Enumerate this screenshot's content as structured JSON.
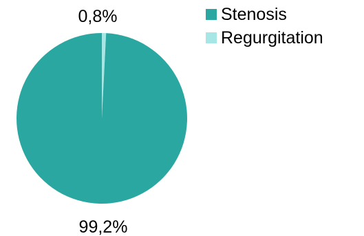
{
  "chart_data": {
    "type": "pie",
    "title": "",
    "categories": [
      "Stenosis",
      "Regurgitation"
    ],
    "values": [
      99.2,
      0.8
    ],
    "value_labels": [
      "99,2%",
      "0,8%"
    ],
    "colors": [
      "#2aa7a1",
      "#a6e6e4"
    ],
    "legend_position": "right",
    "series": [
      {
        "values": [
          99.2,
          0.8
        ]
      }
    ]
  },
  "legend": {
    "items": [
      {
        "label": "Stenosis",
        "color": "#2aa7a1"
      },
      {
        "label": "Regurgitation",
        "color": "#a6e6e4"
      }
    ]
  }
}
